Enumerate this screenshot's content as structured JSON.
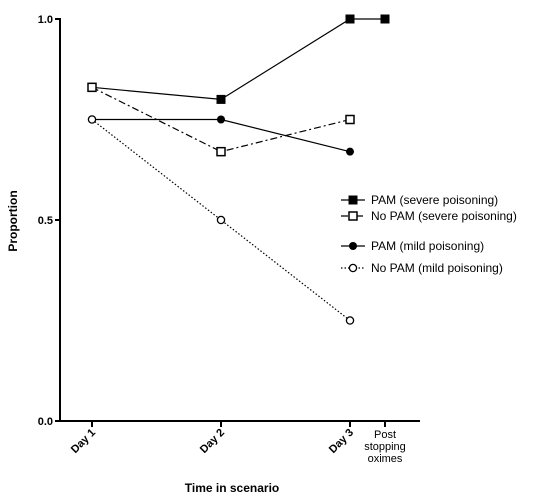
{
  "chart_data": {
    "type": "line",
    "xlabel": "Time in scenario",
    "ylabel": "Proportion",
    "ylim": [
      0,
      1
    ],
    "yticks": [
      {
        "value": 0,
        "label": "0.0"
      },
      {
        "value": 0.5,
        "label": "0.5"
      },
      {
        "value": 1,
        "label": "1.0"
      }
    ],
    "categories": [
      "Day 1",
      "Day 2",
      "Day 3",
      "Post stopping oximes"
    ],
    "x_positions": [
      1,
      2,
      3,
      3.5
    ],
    "xlim": [
      0.5,
      4.5
    ],
    "series": [
      {
        "name": "PAM (severe poisoning)",
        "marker": "square-filled",
        "dash": "solid",
        "values": [
          0.83,
          0.8,
          1.0,
          1.0
        ]
      },
      {
        "name": "No PAM (severe poisoning)",
        "marker": "square-open",
        "dash": "dashdot",
        "values": [
          0.83,
          0.67,
          0.75,
          null
        ]
      },
      {
        "name": "PAM (mild poisoning)",
        "marker": "circle-filled",
        "dash": "solid",
        "values": [
          0.75,
          0.75,
          0.67,
          null
        ]
      },
      {
        "name": "No PAM (mild poisoning)",
        "marker": "circle-open",
        "dash": "dotted",
        "values": [
          0.75,
          0.5,
          0.25,
          null
        ]
      }
    ],
    "legend_position": "right",
    "grid": false
  }
}
